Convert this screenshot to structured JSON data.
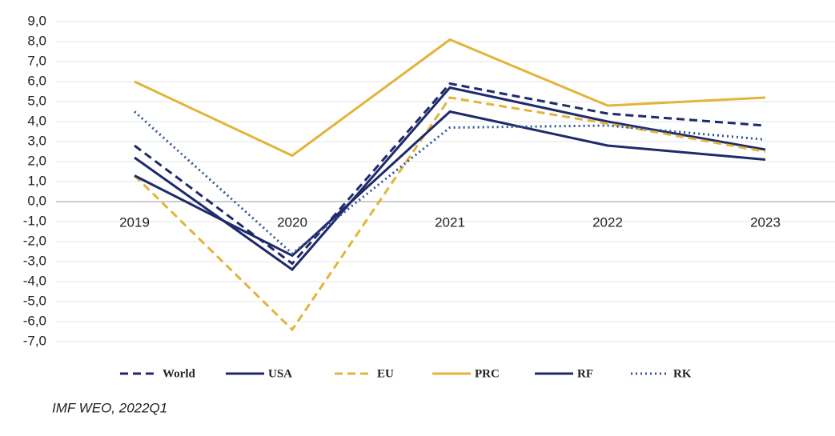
{
  "chart_data": {
    "type": "line",
    "categories": [
      "2019",
      "2020",
      "2021",
      "2022",
      "2023"
    ],
    "series": [
      {
        "name": "World",
        "color": "#1f2a6b",
        "style": "dashed",
        "values": [
          2.8,
          -3.1,
          5.9,
          4.4,
          3.8
        ]
      },
      {
        "name": "USA",
        "color": "#1f2a6b",
        "style": "solid",
        "values": [
          2.2,
          -3.4,
          5.7,
          4.0,
          2.6
        ]
      },
      {
        "name": "EU",
        "color": "#e3b43a",
        "style": "dashed",
        "values": [
          1.3,
          -6.4,
          5.2,
          3.9,
          2.5
        ]
      },
      {
        "name": "PRC",
        "color": "#e3b43a",
        "style": "solid",
        "values": [
          6.0,
          2.3,
          8.1,
          4.8,
          5.2
        ]
      },
      {
        "name": "RF",
        "color": "#1f2a6b",
        "style": "solid",
        "values": [
          1.3,
          -2.7,
          4.5,
          2.8,
          2.1
        ]
      },
      {
        "name": "RK",
        "color": "#2e5597",
        "style": "dotted",
        "values": [
          4.5,
          -2.6,
          3.7,
          3.8,
          3.1
        ]
      }
    ],
    "ylim": [
      -7,
      9
    ],
    "yticks": [
      {
        "value": -7,
        "label": "-7,0"
      },
      {
        "value": -6,
        "label": "-6,0"
      },
      {
        "value": -5,
        "label": "-5,0"
      },
      {
        "value": -4,
        "label": "-4,0"
      },
      {
        "value": -3,
        "label": "-3,0"
      },
      {
        "value": -2,
        "label": "-2,0"
      },
      {
        "value": -1,
        "label": "-1,0"
      },
      {
        "value": 0,
        "label": "0,0"
      },
      {
        "value": 1,
        "label": "1,0"
      },
      {
        "value": 2,
        "label": "2,0"
      },
      {
        "value": 3,
        "label": "3,0"
      },
      {
        "value": 4,
        "label": "4,0"
      },
      {
        "value": 5,
        "label": "5,0"
      },
      {
        "value": 6,
        "label": "6,0"
      },
      {
        "value": 7,
        "label": "7,0"
      },
      {
        "value": 8,
        "label": "8,0"
      },
      {
        "value": 9,
        "label": "9,0"
      }
    ],
    "grid": true,
    "legend": "bottom",
    "source": "IMF WEO, 2022Q1"
  }
}
